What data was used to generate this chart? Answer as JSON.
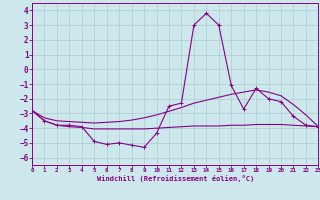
{
  "bg_color": "#cce8ec",
  "grid_color": "#aacccc",
  "line_color": "#880088",
  "xlabel": "Windchill (Refroidissement éolien,°C)",
  "xlim": [
    0,
    23
  ],
  "ylim": [
    -6.5,
    4.5
  ],
  "xtick_labels": [
    "0",
    "1",
    "2",
    "3",
    "4",
    "5",
    "6",
    "7",
    "8",
    "9",
    "10",
    "11",
    "12",
    "13",
    "14",
    "15",
    "16",
    "17",
    "18",
    "19",
    "20",
    "21",
    "22",
    "23"
  ],
  "xticks": [
    0,
    1,
    2,
    3,
    4,
    5,
    6,
    7,
    8,
    9,
    10,
    11,
    12,
    13,
    14,
    15,
    16,
    17,
    18,
    19,
    20,
    21,
    22,
    23
  ],
  "yticks": [
    -6,
    -5,
    -4,
    -3,
    -2,
    -1,
    0,
    1,
    2,
    3,
    4
  ],
  "main_x": [
    0,
    1,
    2,
    3,
    4,
    5,
    6,
    7,
    8,
    9,
    10,
    11,
    12,
    13,
    14,
    15,
    16,
    17,
    18,
    19,
    20,
    21,
    22,
    23
  ],
  "main_y": [
    -2.8,
    -3.5,
    -3.8,
    -3.8,
    -3.9,
    -4.9,
    -5.1,
    -5.0,
    -5.15,
    -5.3,
    -4.35,
    -2.5,
    -2.3,
    3.0,
    3.8,
    3.0,
    -1.1,
    -2.7,
    -1.3,
    -2.0,
    -2.2,
    -3.2,
    -3.8,
    -3.9
  ],
  "top_x": [
    0,
    1,
    2,
    3,
    4,
    5,
    6,
    7,
    8,
    9,
    10,
    11,
    12,
    13,
    14,
    15,
    16,
    17,
    18,
    19,
    20,
    21,
    22,
    23
  ],
  "top_y": [
    -2.8,
    -3.3,
    -3.5,
    -3.55,
    -3.6,
    -3.65,
    -3.6,
    -3.55,
    -3.45,
    -3.3,
    -3.1,
    -2.85,
    -2.6,
    -2.3,
    -2.1,
    -1.9,
    -1.7,
    -1.55,
    -1.4,
    -1.55,
    -1.8,
    -2.4,
    -3.1,
    -3.9
  ],
  "bot_x": [
    0,
    1,
    2,
    3,
    4,
    5,
    6,
    7,
    8,
    9,
    10,
    11,
    12,
    13,
    14,
    15,
    16,
    17,
    18,
    19,
    20,
    21,
    22,
    23
  ],
  "bot_y": [
    -2.8,
    -3.5,
    -3.8,
    -3.9,
    -3.95,
    -4.05,
    -4.05,
    -4.05,
    -4.05,
    -4.05,
    -4.0,
    -3.95,
    -3.9,
    -3.85,
    -3.85,
    -3.85,
    -3.8,
    -3.8,
    -3.75,
    -3.75,
    -3.75,
    -3.8,
    -3.85,
    -3.9
  ]
}
